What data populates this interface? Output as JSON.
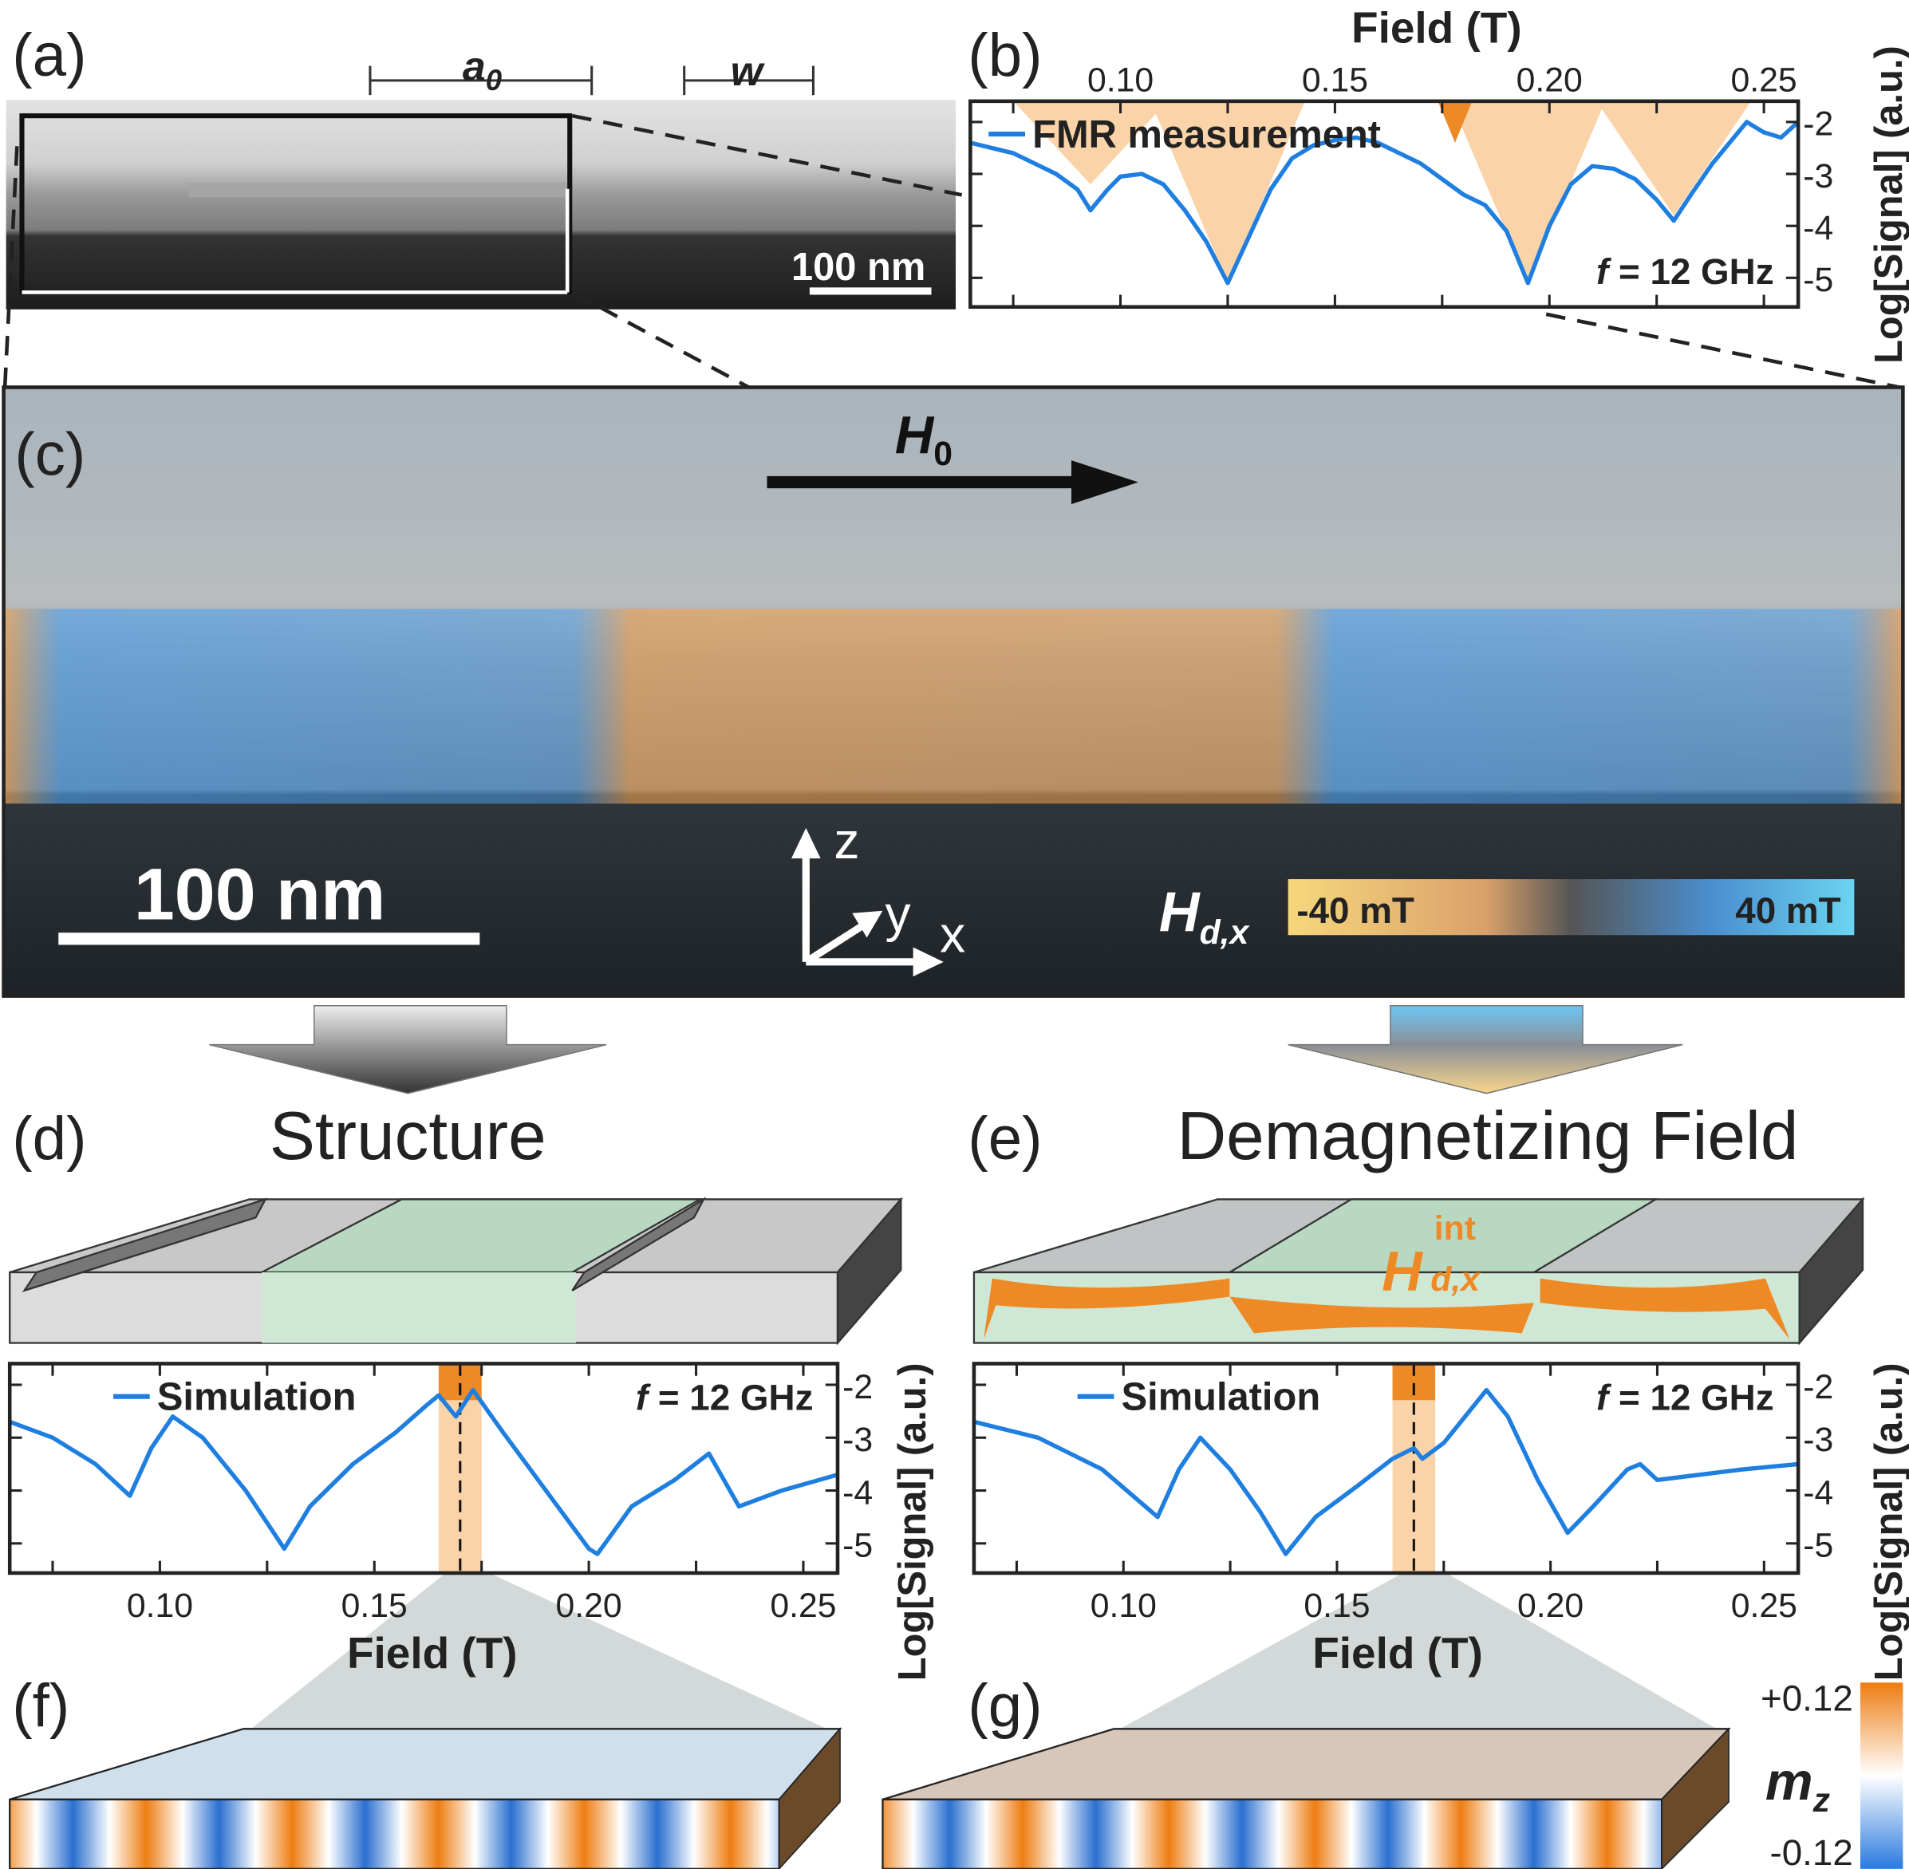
{
  "panels": {
    "a": {
      "label": "(a)",
      "a0": "a",
      "a0_sub": "0",
      "w": "w",
      "scalebar": "100 nm"
    },
    "b": {
      "label": "(b)",
      "legend": "FMR measurement",
      "freq_italic": "f",
      "freq": " = 12 GHz"
    },
    "c": {
      "label": "(c)",
      "field": "H",
      "field_sub": "0",
      "scalebar": "100 nm",
      "axis_z": "z",
      "axis_y": "y",
      "axis_x": "x",
      "cbar_label": "H",
      "cbar_label_sub": "d,x",
      "cbar_min": "-40 mT",
      "cbar_max": "40 mT"
    },
    "d": {
      "label": "(d)",
      "title": "Structure",
      "legend": "Simulation",
      "freq_italic": "f",
      "freq": " = 12 GHz"
    },
    "e": {
      "label": "(e)",
      "title": "Demagnetizing Field",
      "hint": "H",
      "hint_sup": "int",
      "hint_sub": "d,x",
      "legend": "Simulation",
      "freq_italic": "f",
      "freq": " = 12 GHz"
    },
    "f": {
      "label": "(f)"
    },
    "g": {
      "label": "(g)",
      "cbar_max": "+0.12",
      "cbar_label": "m",
      "cbar_label_sub": "z",
      "cbar_min": "-0.12"
    }
  },
  "colors": {
    "curve": "#1e7fe0",
    "shade_light": "#fbd3a8",
    "shade_dark": "#ee8a25",
    "green": "#cfe8d6",
    "gray": "#bdbdbd"
  },
  "chart_data": [
    {
      "id": "b",
      "type": "line",
      "xlabel": "Field (T)",
      "ylabel": "Log[Signal] (a.u.)",
      "xlim": [
        0.065,
        0.258
      ],
      "ylim": [
        -5.56,
        -1.6
      ],
      "xticks": [
        "0.10",
        "0.15",
        "0.20",
        "0.25"
      ],
      "yticks": [
        "-2",
        "-3",
        "-4",
        "-5"
      ],
      "series": [
        {
          "name": "FMR measurement",
          "x": [
            0.065,
            0.07,
            0.075,
            0.08,
            0.085,
            0.09,
            0.093,
            0.097,
            0.1,
            0.105,
            0.11,
            0.115,
            0.12,
            0.125,
            0.13,
            0.135,
            0.14,
            0.145,
            0.15,
            0.155,
            0.16,
            0.165,
            0.17,
            0.175,
            0.18,
            0.185,
            0.19,
            0.195,
            0.2,
            0.205,
            0.21,
            0.215,
            0.22,
            0.225,
            0.229,
            0.233,
            0.238,
            0.243,
            0.246,
            0.25,
            0.254,
            0.258
          ],
          "y": [
            -2.4,
            -2.5,
            -2.6,
            -2.8,
            -3.0,
            -3.3,
            -3.7,
            -3.3,
            -3.05,
            -3.0,
            -3.2,
            -3.7,
            -4.3,
            -5.1,
            -4.2,
            -3.3,
            -2.7,
            -2.45,
            -2.35,
            -2.3,
            -2.4,
            -2.6,
            -2.8,
            -3.1,
            -3.4,
            -3.6,
            -4.1,
            -5.1,
            -4.0,
            -3.2,
            -2.85,
            -2.9,
            -3.1,
            -3.5,
            -3.9,
            -3.4,
            -2.8,
            -2.3,
            -2.0,
            -2.2,
            -2.3,
            -2.0
          ]
        }
      ],
      "shaded_dips": [
        {
          "x": 0.093,
          "y": -3.2
        },
        {
          "x": 0.125,
          "y": -5.1
        },
        {
          "x": 0.195,
          "y": -5.1
        },
        {
          "x": 0.229,
          "y": -3.8
        }
      ],
      "dark_dip": {
        "x": 0.178,
        "y": -2.4
      }
    },
    {
      "id": "d",
      "type": "line",
      "xlabel": "Field (T)",
      "ylabel": "Log[Signal] (a.u.)",
      "xlim": [
        0.065,
        0.258
      ],
      "ylim": [
        -5.56,
        -1.6
      ],
      "xticks": [
        "0.10",
        "0.15",
        "0.20",
        "0.25"
      ],
      "yticks": [
        "-2",
        "-3",
        "-4",
        "-5"
      ],
      "series": [
        {
          "name": "Simulation",
          "x": [
            0.065,
            0.075,
            0.085,
            0.093,
            0.098,
            0.103,
            0.11,
            0.12,
            0.129,
            0.135,
            0.145,
            0.155,
            0.162,
            0.165,
            0.169,
            0.173,
            0.18,
            0.19,
            0.2,
            0.202,
            0.21,
            0.22,
            0.228,
            0.235,
            0.245,
            0.258
          ],
          "y": [
            -2.7,
            -3.0,
            -3.5,
            -4.1,
            -3.2,
            -2.6,
            -3.0,
            -4.0,
            -5.1,
            -4.3,
            -3.5,
            -2.9,
            -2.4,
            -2.2,
            -2.6,
            -2.1,
            -2.9,
            -4.0,
            -5.1,
            -5.2,
            -4.3,
            -3.8,
            -3.3,
            -4.3,
            -4.0,
            -3.7
          ]
        }
      ],
      "highlight_band": [
        0.165,
        0.175
      ],
      "marker_x": 0.17
    },
    {
      "id": "e",
      "type": "line",
      "xlabel": "Field (T)",
      "ylabel": "Log[Signal] (a.u.)",
      "xlim": [
        0.065,
        0.258
      ],
      "ylim": [
        -5.56,
        -1.6
      ],
      "xticks": [
        "0.10",
        "0.15",
        "0.20",
        "0.25"
      ],
      "yticks": [
        "-2",
        "-3",
        "-4",
        "-5"
      ],
      "series": [
        {
          "name": "Simulation",
          "x": [
            0.065,
            0.08,
            0.095,
            0.108,
            0.113,
            0.118,
            0.125,
            0.132,
            0.138,
            0.145,
            0.155,
            0.163,
            0.168,
            0.17,
            0.175,
            0.185,
            0.19,
            0.197,
            0.204,
            0.21,
            0.218,
            0.221,
            0.225,
            0.235,
            0.245,
            0.258
          ],
          "y": [
            -2.7,
            -3.0,
            -3.6,
            -4.5,
            -3.6,
            -3.0,
            -3.6,
            -4.4,
            -5.2,
            -4.5,
            -3.9,
            -3.4,
            -3.2,
            -3.4,
            -3.1,
            -2.1,
            -2.6,
            -3.8,
            -4.8,
            -4.3,
            -3.6,
            -3.5,
            -3.8,
            -3.7,
            -3.6,
            -3.5
          ]
        }
      ],
      "highlight_band": [
        0.163,
        0.173
      ],
      "marker_x": 0.168
    }
  ]
}
